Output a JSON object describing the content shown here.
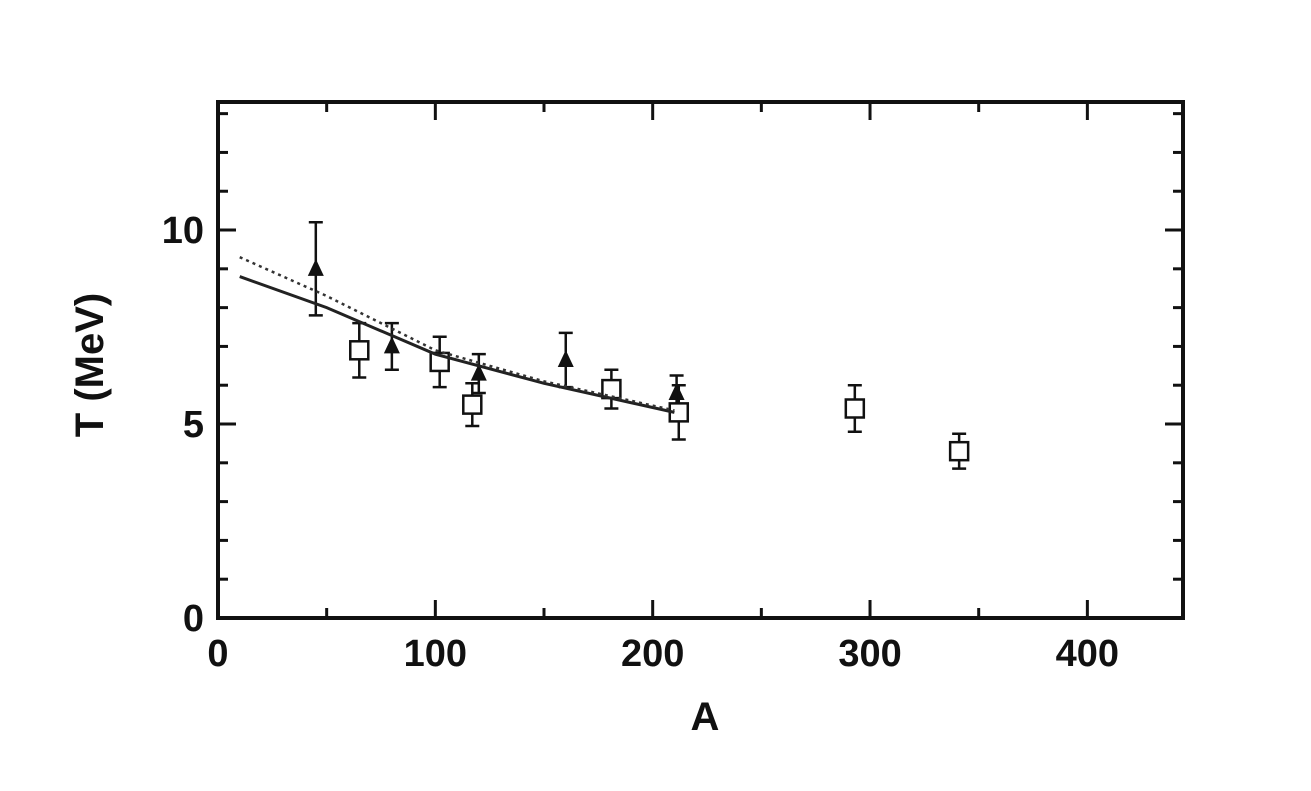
{
  "chart_data": {
    "type": "scatter",
    "xlabel": "A",
    "ylabel": "T (MeV)",
    "xlim": [
      0,
      444
    ],
    "ylim": [
      0,
      13.3
    ],
    "xticks": [
      0,
      100,
      200,
      300,
      400
    ],
    "yticks": [
      0,
      5,
      10
    ],
    "xminorticks": [
      50,
      150,
      250,
      350
    ],
    "yminorticks": [
      1,
      2,
      3,
      4,
      6,
      7,
      8,
      9,
      11,
      12,
      13
    ],
    "series": [
      {
        "marker": "triangle",
        "color": "#111111",
        "x": [
          45,
          80,
          120,
          160,
          211
        ],
        "values": [
          9.0,
          7.0,
          6.3,
          6.65,
          5.8
        ],
        "errors": [
          1.2,
          0.6,
          0.5,
          0.7,
          0.45
        ]
      },
      {
        "marker": "square",
        "color": "#111111",
        "x": [
          65,
          102,
          117,
          181,
          212,
          293,
          341
        ],
        "values": [
          6.9,
          6.6,
          5.5,
          5.9,
          5.3,
          5.4,
          4.3
        ],
        "errors": [
          0.7,
          0.65,
          0.55,
          0.5,
          0.7,
          0.6,
          0.45
        ]
      },
      {
        "marker": "none",
        "line": "solid",
        "color": "#222222",
        "x": [
          10,
          50,
          100,
          150,
          210
        ],
        "values": [
          8.8,
          8.0,
          6.8,
          6.05,
          5.3
        ]
      },
      {
        "marker": "none",
        "line": "dotted",
        "color": "#333333",
        "x": [
          10,
          50,
          100,
          150,
          210
        ],
        "values": [
          9.3,
          8.3,
          6.9,
          6.1,
          5.35
        ]
      }
    ]
  }
}
